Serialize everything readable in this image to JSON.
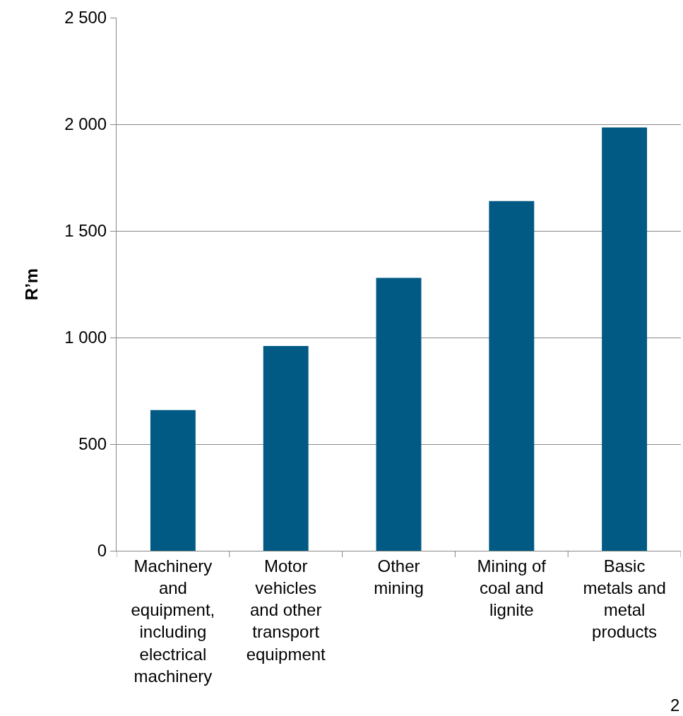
{
  "chart_data": {
    "type": "bar",
    "ylabel": "R’m",
    "categories": [
      "Machinery and equipment, including electrical machinery",
      "Motor vehicles and other transport equipment",
      "Other mining",
      "Mining of coal and lignite",
      "Basic metals and metal products"
    ],
    "values": [
      660,
      960,
      1280,
      1640,
      1985
    ],
    "color": "#005a84",
    "ylim": [
      0,
      2500
    ],
    "yticks": [
      0,
      {
        "value": 500,
        "label": "500"
      },
      {
        "value": 1000,
        "label": "1 000"
      },
      {
        "value": 1500,
        "label": "1 500"
      },
      {
        "value": 2000,
        "label": "2 000"
      },
      {
        "value": 2500,
        "label": "2 500"
      }
    ],
    "grid": "y",
    "annotations": [
      "2"
    ]
  }
}
